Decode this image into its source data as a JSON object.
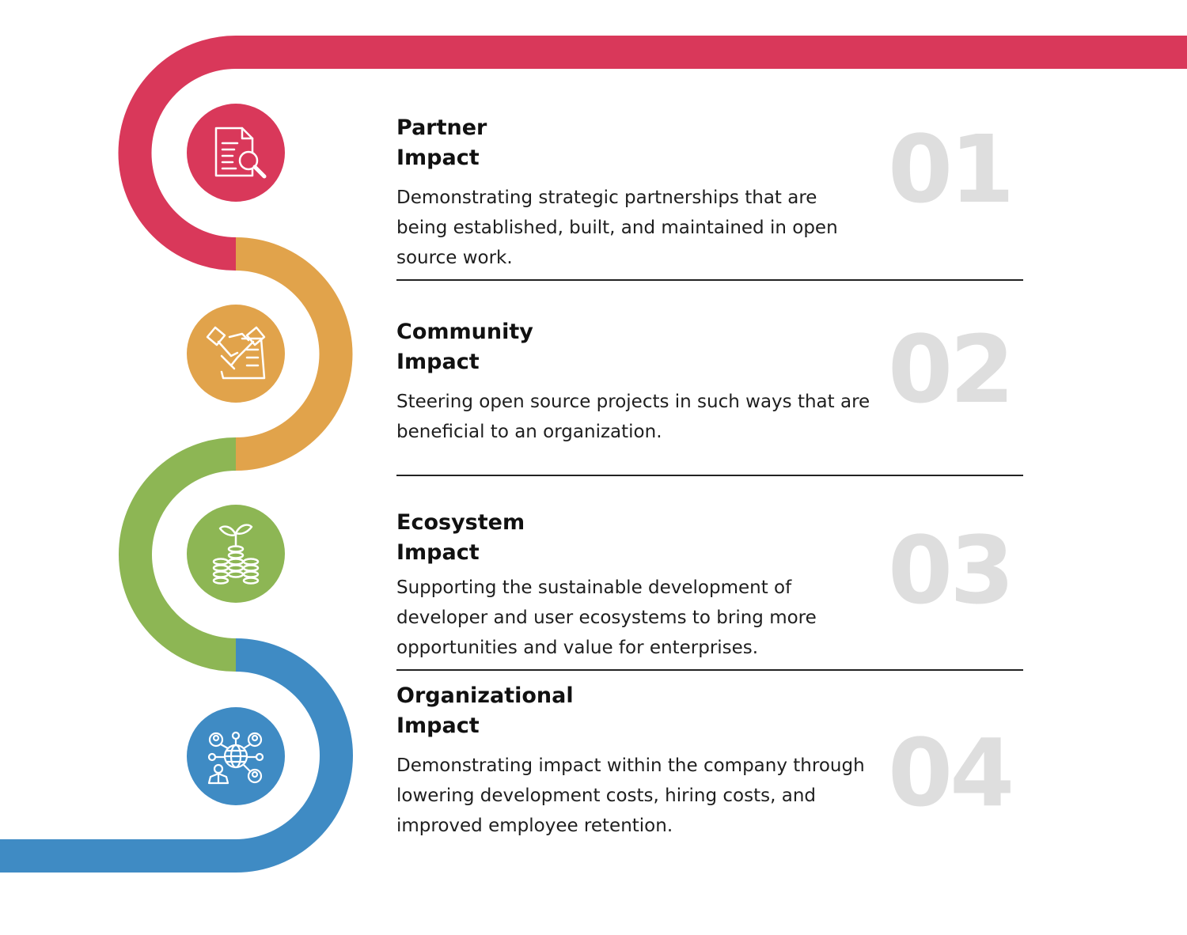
{
  "colors": {
    "red": "#D9385A",
    "orange": "#E1A34B",
    "green": "#8DB654",
    "blue": "#3F8BC4",
    "number": "#DEDEDE"
  },
  "items": [
    {
      "title_line1": "Partner",
      "title_line2": "Impact",
      "number": "01",
      "description": "Demonstrating strategic partnerships that are being established, built, and maintained in open source work.",
      "icon": "document-search-icon"
    },
    {
      "title_line1": "Community",
      "title_line2": "Impact",
      "number": "02",
      "description": "Steering open source projects in such ways that are beneficial to an organization.",
      "icon": "handshake-contract-icon"
    },
    {
      "title_line1": "Ecosystem",
      "title_line2": "Impact",
      "number": "03",
      "description": "Supporting the sustainable development of developer and user ecosystems to bring more opportunities and value for enterprises.",
      "icon": "coins-sprout-icon"
    },
    {
      "title_line1": "Organizational",
      "title_line2": "Impact",
      "number": "04",
      "description": "Demonstrating impact within the company through lowering development costs, hiring costs, and improved employee retention.",
      "icon": "global-network-icon"
    }
  ]
}
